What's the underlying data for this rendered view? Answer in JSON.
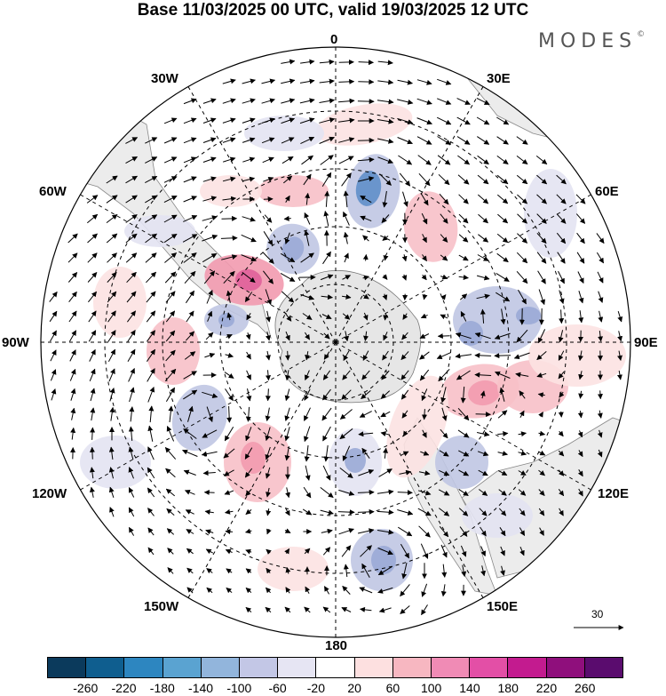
{
  "title": "Base 11/03/2025 00 UTC, valid 19/03/2025 12 UTC",
  "logo": {
    "text": "MODES",
    "mark": "©"
  },
  "map": {
    "projection": "south-polar-stereographic",
    "longitude_labels": [
      "0",
      "30E",
      "60E",
      "90E",
      "120E",
      "150E",
      "180",
      "150W",
      "120W",
      "90W",
      "60W",
      "30W"
    ],
    "wind_vector_reference": "30",
    "anomaly_colors": {
      "neg_weak": "#e3e3f2",
      "neg_mid": "#c0c6e3",
      "neg_strong": "#9aaad6",
      "neg_core": "#5f8fc9",
      "pos_weak": "#fce2e2",
      "pos_mid": "#f7c0c8",
      "pos_strong": "#f29aaf",
      "pos_core": "#e0609a",
      "land": "#ececec"
    }
  },
  "colorbar": {
    "ticks": [
      "-260",
      "-220",
      "-180",
      "-140",
      "-100",
      "-60",
      "-20",
      "20",
      "60",
      "100",
      "140",
      "180",
      "220",
      "260"
    ],
    "colors": [
      "#0b3a5c",
      "#0f5e8f",
      "#2d86c0",
      "#5aa3d1",
      "#92b5dc",
      "#c3c7e6",
      "#e6e5f3",
      "#ffffff",
      "#fde0e0",
      "#f7b7c1",
      "#f08bb5",
      "#e34fa6",
      "#c31b8f",
      "#8f0f7c",
      "#5a0c6e"
    ]
  }
}
